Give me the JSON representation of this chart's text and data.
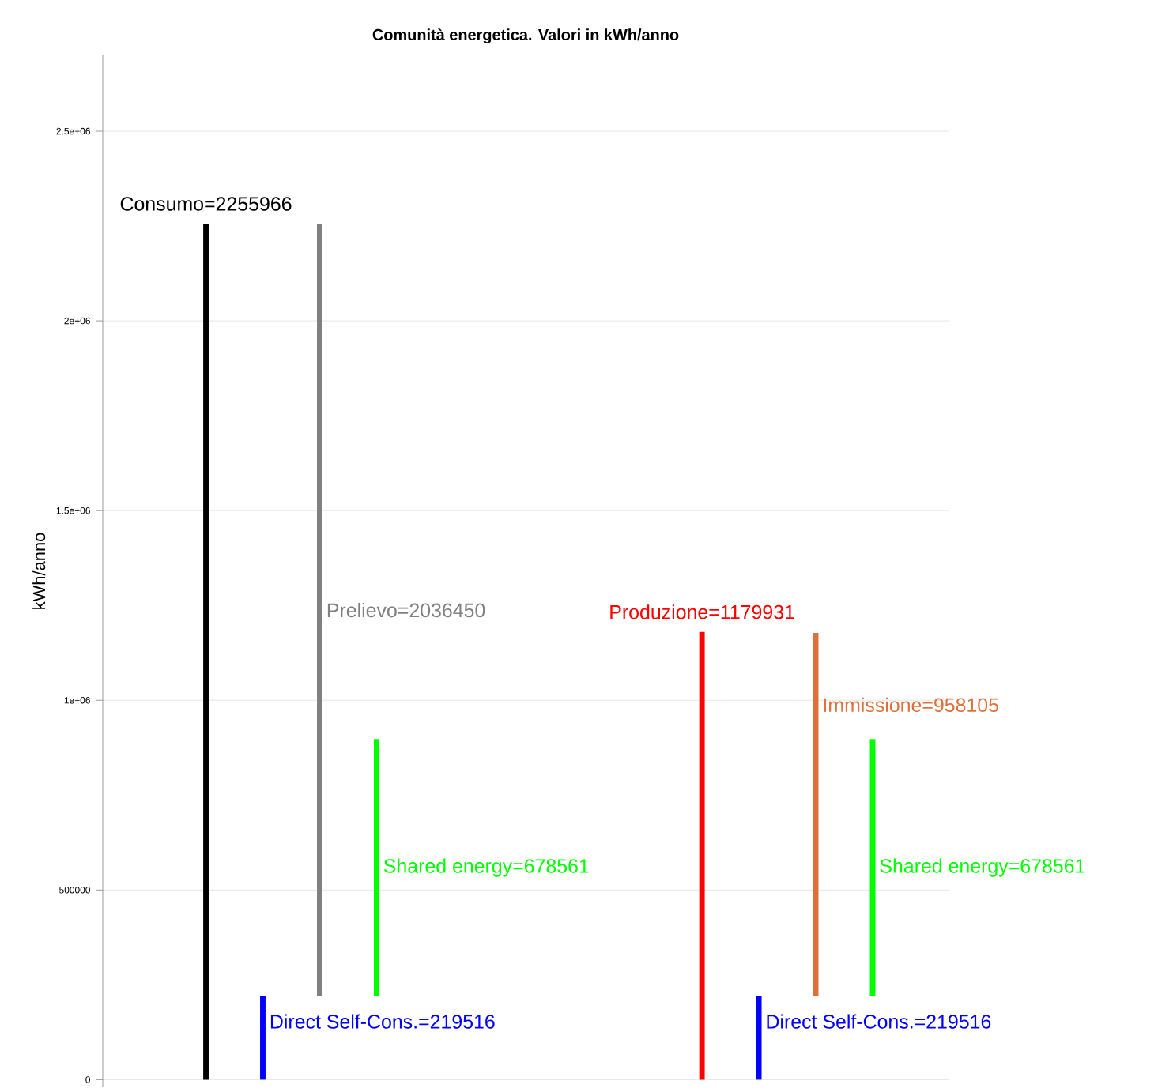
{
  "chart_data": {
    "type": "bar",
    "title": "Comunità energetica. Valori in kWh/anno",
    "ylabel": "kWh/anno",
    "categories": [
      null,
      null
    ],
    "ylim": [
      -20000,
      2700000
    ],
    "yticks": [
      {
        "value": 0,
        "label": "0"
      },
      {
        "value": 500000,
        "label": "500000"
      },
      {
        "value": 1000000,
        "label": "1e+06"
      },
      {
        "value": 1500000,
        "label": "1.5e+06"
      },
      {
        "value": 2000000,
        "label": "2e+06"
      },
      {
        "value": 2500000,
        "label": "2.5e+06"
      }
    ],
    "grid": "y",
    "annotations": [
      "Consumo=2255966",
      "Produzione=1179931",
      "Direct Self-Cons.=219516",
      "Direct Self-Cons.=219516",
      "Prelievo=2036450",
      "Immissione=958105",
      "Shared energy=678561",
      "Shared energy=678561"
    ],
    "series": [
      {
        "colors": [
          "#000000",
          "#ff0000"
        ],
        "base": [
          0,
          0
        ],
        "values": [
          2255966,
          1179931
        ]
      },
      {
        "colors": [
          "#0000ff",
          "#0000ff"
        ],
        "base": [
          0,
          0
        ],
        "values": [
          219516,
          219516
        ]
      },
      {
        "colors": [
          "#808080",
          "#e0703a"
        ],
        "base": [
          219516,
          219516
        ],
        "values": [
          2036450,
          958105
        ]
      },
      {
        "colors": [
          "#00ff00",
          "#00ff00"
        ],
        "base": [
          219516,
          219516
        ],
        "values": [
          678561,
          678561
        ]
      }
    ]
  }
}
